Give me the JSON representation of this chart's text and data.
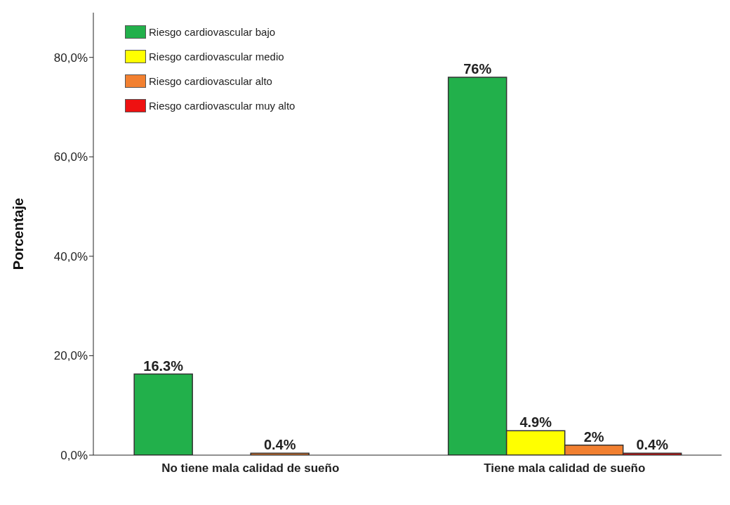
{
  "chart_data": {
    "type": "bar",
    "ylabel": "Porcentaje",
    "categories": [
      "No tiene mala calidad de sueño",
      "Tiene mala calidad de sueño"
    ],
    "series": [
      {
        "name": "Riesgo cardiovascular bajo",
        "color": "#22b04b",
        "values": [
          16.3,
          76
        ],
        "value_labels": [
          "16.3%",
          "76%"
        ]
      },
      {
        "name": "Riesgo cardiovascular medio",
        "color": "#ffff00",
        "values": [
          null,
          4.9
        ],
        "value_labels": [
          null,
          "4.9%"
        ]
      },
      {
        "name": "Riesgo cardiovascular alto",
        "color": "#f28030",
        "values": [
          0.4,
          2
        ],
        "value_labels": [
          "0.4%",
          "2%"
        ]
      },
      {
        "name": "Riesgo cardiovascular muy alto",
        "color": "#ee1111",
        "values": [
          null,
          0.4
        ],
        "value_labels": [
          null,
          "0.4%"
        ]
      }
    ],
    "ylim": [
      0,
      89
    ],
    "yticks": [
      {
        "value": 0,
        "label": "0,0%"
      },
      {
        "value": 20,
        "label": "20,0%"
      },
      {
        "value": 40,
        "label": "40,0%"
      },
      {
        "value": 60,
        "label": "60,0%"
      },
      {
        "value": 80,
        "label": "80,0%"
      }
    ],
    "grid": false,
    "legend": "top left"
  }
}
